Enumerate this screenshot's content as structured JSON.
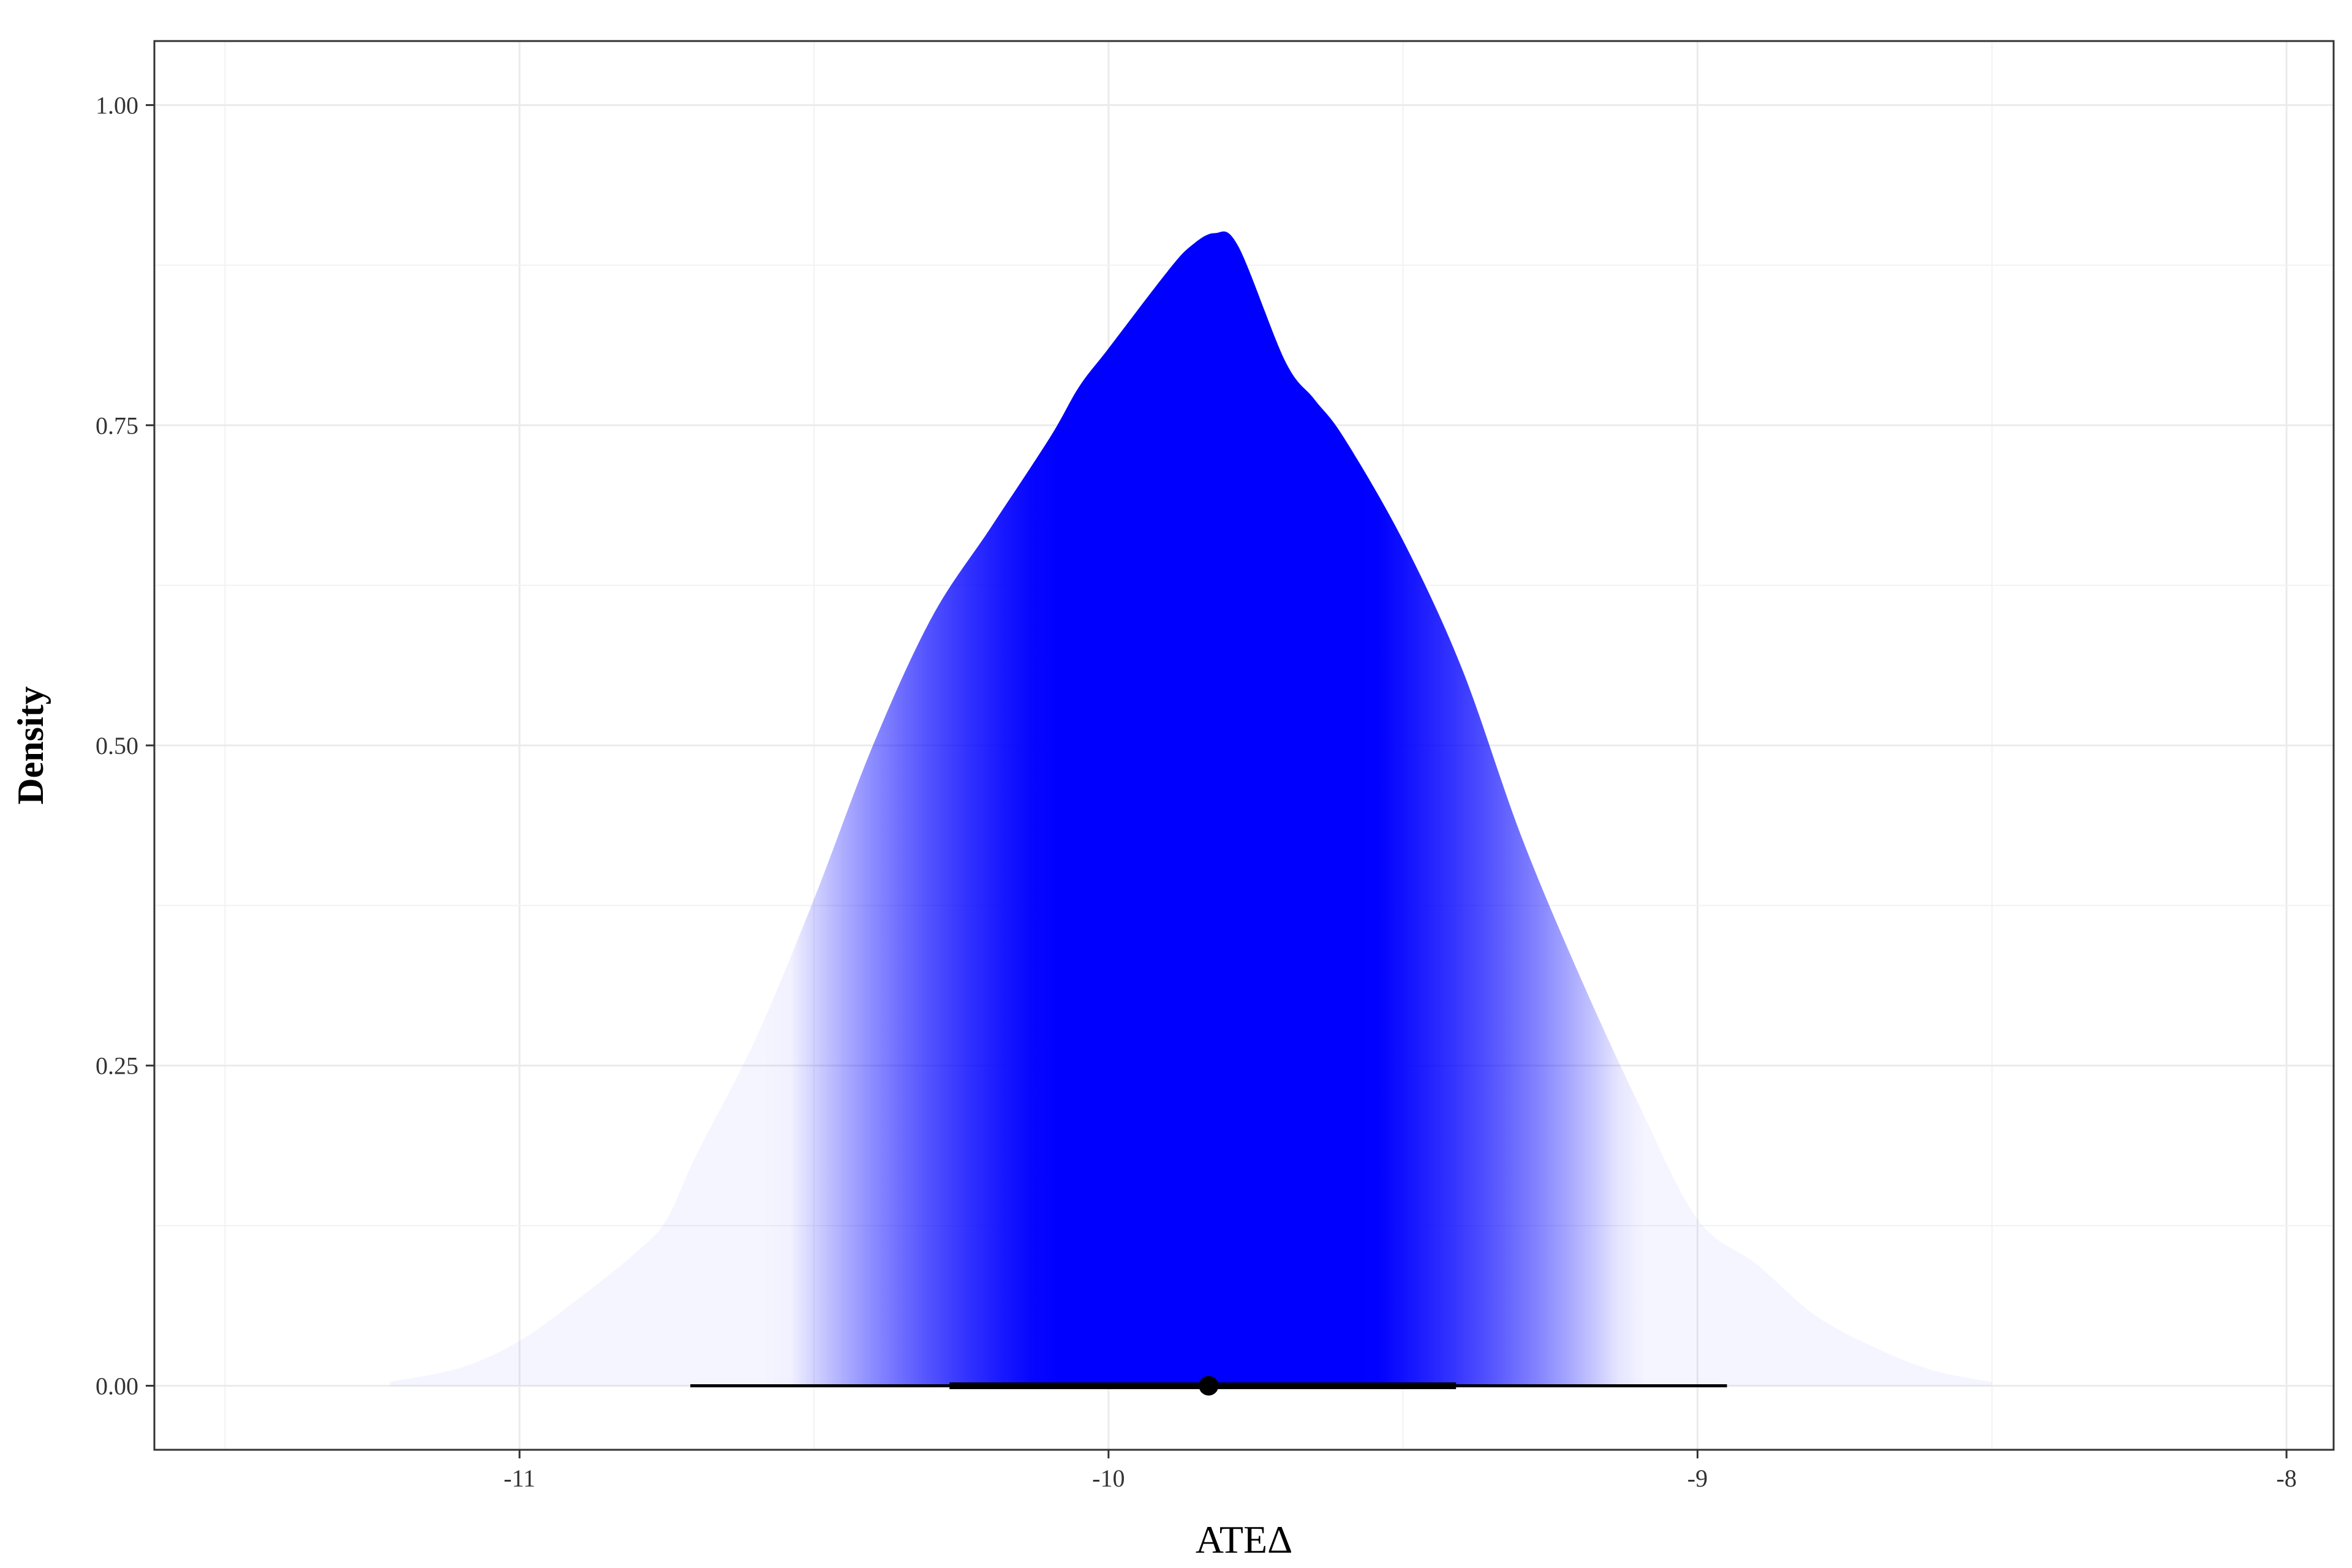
{
  "chart_data": {
    "type": "area",
    "xlabel": "ATEΔ",
    "ylabel": "Density",
    "xlim": [
      -11.62,
      -7.92
    ],
    "ylim": [
      -0.05,
      1.05
    ],
    "x_ticks": [
      -11,
      -10,
      -9,
      -8
    ],
    "x_tick_labels": [
      "-11",
      "-10",
      "-9",
      "-8"
    ],
    "y_ticks": [
      0,
      0.25,
      0.5,
      0.75,
      1
    ],
    "y_tick_labels": [
      "0.00",
      "0.25",
      "0.50",
      "0.75",
      "1.00"
    ],
    "grid": true,
    "legend": "none",
    "fill_color": "#0000ff",
    "density": {
      "x": [
        -11.22,
        -11.1,
        -11.0,
        -10.9,
        -10.8,
        -10.75,
        -10.7,
        -10.6,
        -10.5,
        -10.4,
        -10.3,
        -10.2,
        -10.1,
        -10.05,
        -10.0,
        -9.9,
        -9.86,
        -9.82,
        -9.78,
        -9.7,
        -9.65,
        -9.6,
        -9.5,
        -9.4,
        -9.3,
        -9.2,
        -9.1,
        -9.0,
        -8.9,
        -8.8,
        -8.7,
        -8.6,
        -8.5
      ],
      "y": [
        0.003,
        0.014,
        0.035,
        0.068,
        0.105,
        0.13,
        0.18,
        0.27,
        0.38,
        0.5,
        0.6,
        0.67,
        0.74,
        0.78,
        0.81,
        0.87,
        0.89,
        0.9,
        0.89,
        0.8,
        0.77,
        0.74,
        0.66,
        0.56,
        0.43,
        0.32,
        0.22,
        0.13,
        0.095,
        0.055,
        0.03,
        0.012,
        0.003
      ]
    },
    "point_estimate": -9.83,
    "interval_66": [
      -10.27,
      -9.41
    ],
    "interval_95": [
      -10.71,
      -8.95
    ]
  }
}
